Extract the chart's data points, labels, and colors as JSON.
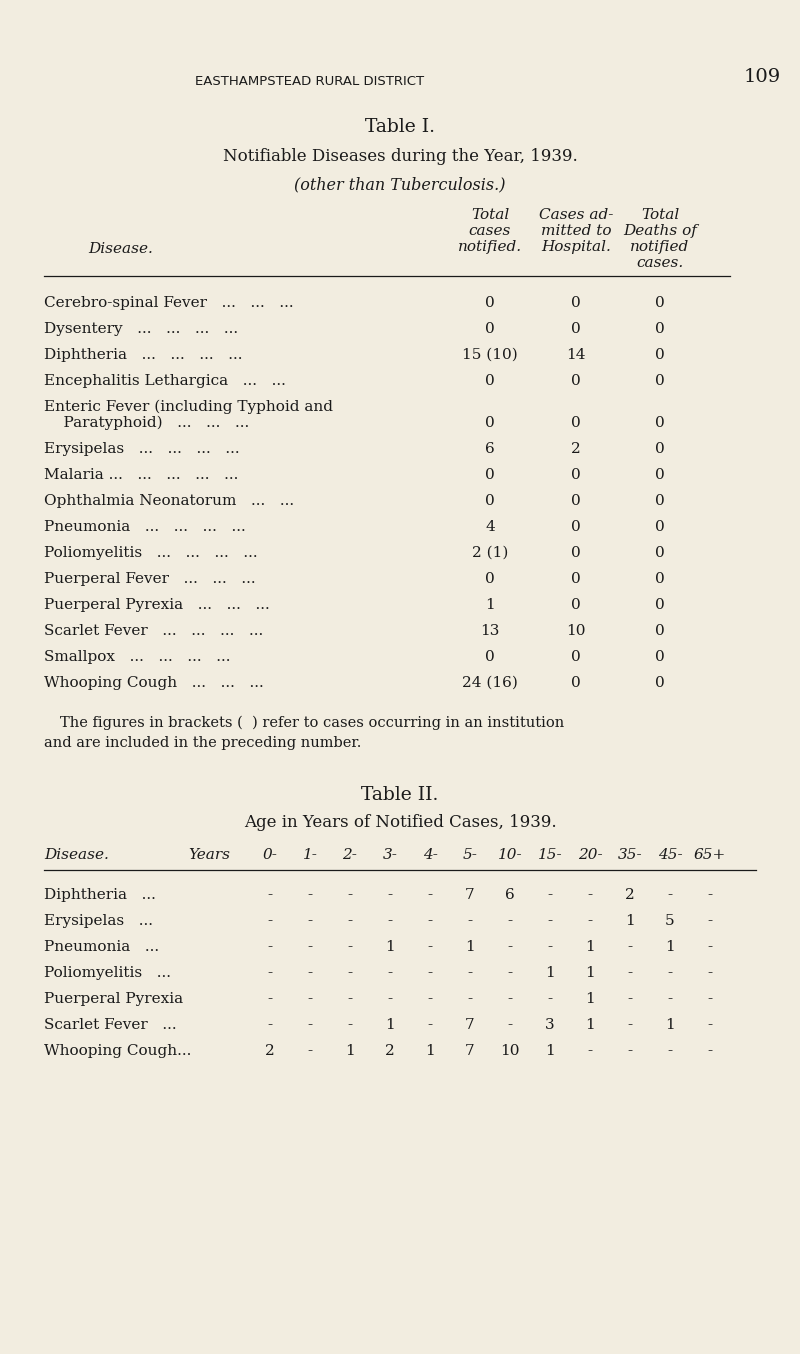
{
  "bg_color": "#f2ede0",
  "text_color": "#1a1a1a",
  "page_header": "EASTHAMPSTEAD RURAL DISTRICT",
  "page_number": "109",
  "table1_title": "Table I.",
  "table1_subtitle1": "Notifiable Diseases during the Year, 1939.",
  "table1_subtitle2": "(other than Tuberculosis.)",
  "table1_disease_label": "Disease.",
  "table1_col1_lines": [
    "Total",
    "cases",
    "notified."
  ],
  "table1_col2_lines": [
    "Cases ad-",
    "mitted to",
    "Hospital."
  ],
  "table1_col3_lines": [
    "Total",
    "Deaths of",
    "notified",
    "cases."
  ],
  "table1_rows": [
    {
      "disease": "Cerebro-spinal Fever",
      "dots": "...   ...   ...",
      "total": "0",
      "admitted": "0",
      "deaths": "0",
      "twolines": false
    },
    {
      "disease": "Dysentery",
      "dots": "...   ...   ...   ...",
      "total": "0",
      "admitted": "0",
      "deaths": "0",
      "twolines": false
    },
    {
      "disease": "Diphtheria",
      "dots": "...   ...   ...   ...",
      "total": "15 (10)",
      "admitted": "14",
      "deaths": "0",
      "twolines": false
    },
    {
      "disease": "Encephalitis Lethargica",
      "dots": "...   ...",
      "total": "0",
      "admitted": "0",
      "deaths": "0",
      "twolines": false
    },
    {
      "disease": "Enteric Fever (including Typhoid and",
      "disease2": "    Paratyphoid)",
      "dots": "...   ...   ...",
      "total": "0",
      "admitted": "0",
      "deaths": "0",
      "twolines": true
    },
    {
      "disease": "Erysipelas",
      "dots": "...   ...   ...   ...",
      "total": "6",
      "admitted": "2",
      "deaths": "0",
      "twolines": false
    },
    {
      "disease": "Malaria ...",
      "dots": "...   ...   ...   ...",
      "total": "0",
      "admitted": "0",
      "deaths": "0",
      "twolines": false
    },
    {
      "disease": "Ophthalmia Neonatorum",
      "dots": "...   ...",
      "total": "0",
      "admitted": "0",
      "deaths": "0",
      "twolines": false
    },
    {
      "disease": "Pneumonia",
      "dots": "...   ...   ...   ...",
      "total": "4",
      "admitted": "0",
      "deaths": "0",
      "twolines": false
    },
    {
      "disease": "Poliomyelitis",
      "dots": "...   ...   ...   ...",
      "total": "2 (1)",
      "admitted": "0",
      "deaths": "0",
      "twolines": false
    },
    {
      "disease": "Puerperal Fever",
      "dots": "...   ...   ...",
      "total": "0",
      "admitted": "0",
      "deaths": "0",
      "twolines": false
    },
    {
      "disease": "Puerperal Pyrexia",
      "dots": "...   ...   ...",
      "total": "1",
      "admitted": "0",
      "deaths": "0",
      "twolines": false
    },
    {
      "disease": "Scarlet Fever",
      "dots": "...   ...   ...   ...",
      "total": "13",
      "admitted": "10",
      "deaths": "0",
      "twolines": false
    },
    {
      "disease": "Smallpox",
      "dots": "...   ...   ...   ...",
      "total": "0",
      "admitted": "0",
      "deaths": "0",
      "twolines": false
    },
    {
      "disease": "Whooping Cough",
      "dots": "...   ...   ...",
      "total": "24 (16)",
      "admitted": "0",
      "deaths": "0",
      "twolines": false
    }
  ],
  "footnote_line1": "The figures in brackets (  ) refer to cases occurring in an institution",
  "footnote_line2": "and are included in the preceding number.",
  "table2_title": "Table II.",
  "table2_subtitle": "Age in Years of Notified Cases, 1939.",
  "table2_disease_label": "Disease.",
  "table2_years_label": "Years",
  "table2_col_headers": [
    "0-",
    "1-",
    "2-",
    "3-",
    "4-",
    "5-",
    "10-",
    "15-",
    "20-",
    "35-",
    "45-",
    "65+"
  ],
  "table2_rows": [
    {
      "disease": "Diphtheria",
      "dots": "...",
      "values": [
        "-",
        "-",
        "-",
        "-",
        "-",
        "7",
        "6",
        "-",
        "-",
        "2",
        "-",
        "-"
      ]
    },
    {
      "disease": "Erysipelas",
      "dots": "...",
      "values": [
        "-",
        "-",
        "-",
        "-",
        "-",
        "-",
        "-",
        "-",
        "-",
        "1",
        "5",
        "-"
      ]
    },
    {
      "disease": "Pneumonia",
      "dots": "...",
      "values": [
        "-",
        "-",
        "-",
        "1",
        "-",
        "1",
        "-",
        "-",
        "1",
        "-",
        "1",
        "-"
      ]
    },
    {
      "disease": "Poliomyelitis",
      "dots": "...",
      "values": [
        "-",
        "-",
        "-",
        "-",
        "-",
        "-",
        "-",
        "1",
        "1",
        "-",
        "-",
        "-"
      ]
    },
    {
      "disease": "Puerperal Pyrexia",
      "dots": "",
      "values": [
        "-",
        "-",
        "-",
        "-",
        "-",
        "-",
        "-",
        "-",
        "1",
        "-",
        "-",
        "-"
      ]
    },
    {
      "disease": "Scarlet Fever",
      "dots": "...",
      "values": [
        "-",
        "-",
        "-",
        "1",
        "-",
        "7",
        "-",
        "3",
        "1",
        "-",
        "1",
        "-"
      ]
    },
    {
      "disease": "Whooping Cough...",
      "dots": "",
      "values": [
        "2",
        "-",
        "1",
        "2",
        "1",
        "7",
        "10",
        "1",
        "-",
        "-",
        "-",
        "-"
      ]
    }
  ]
}
